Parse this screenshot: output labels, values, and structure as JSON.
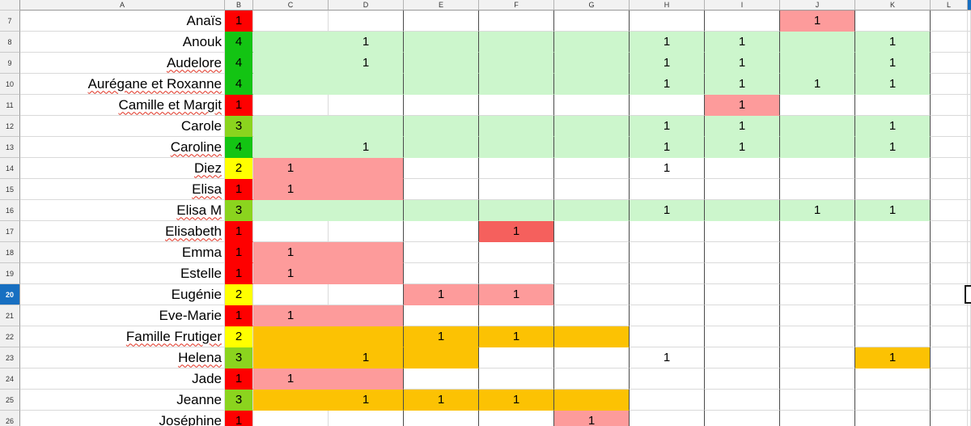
{
  "columns": [
    "A",
    "B",
    "C",
    "D",
    "E",
    "F",
    "G",
    "H",
    "I",
    "J",
    "K",
    "L"
  ],
  "grid_letters": [
    "C",
    "D",
    "E",
    "F",
    "G",
    "H",
    "I",
    "J",
    "K",
    "L"
  ],
  "colors": {
    "score_red": "#fe0000",
    "score_yellow": "#ffff00",
    "score_chartreuse": "#8bd41e",
    "score_green": "#13c413",
    "fill_lightgreen": "#ccf6cc",
    "fill_salmon": "#fd9b9b",
    "fill_coral": "#f5605d",
    "fill_orange": "#fcc203",
    "selected_header_blue": "#176fc1"
  },
  "selection": {
    "selected_row": "20",
    "cursor_partially_visible": true
  },
  "rows": [
    {
      "n": "7",
      "name": "Anaïs",
      "misspelled": false,
      "score": "1",
      "score_color": "score_red",
      "band": null,
      "cells": [
        {
          "col": "J",
          "val": "1",
          "fill": "fill_salmon"
        }
      ],
      "selected": false
    },
    {
      "n": "8",
      "name": "Anouk",
      "misspelled": false,
      "score": "4",
      "score_color": "score_green",
      "band": {
        "from": "C",
        "to": "K",
        "color": "fill_lightgreen"
      },
      "cells": [
        {
          "col": "D",
          "val": "1"
        },
        {
          "col": "H",
          "val": "1"
        },
        {
          "col": "I",
          "val": "1"
        },
        {
          "col": "K",
          "val": "1"
        }
      ],
      "selected": false
    },
    {
      "n": "9",
      "name": "Audelore",
      "misspelled": true,
      "score": "4",
      "score_color": "score_green",
      "band": {
        "from": "C",
        "to": "K",
        "color": "fill_lightgreen"
      },
      "cells": [
        {
          "col": "D",
          "val": "1"
        },
        {
          "col": "H",
          "val": "1"
        },
        {
          "col": "I",
          "val": "1"
        },
        {
          "col": "K",
          "val": "1"
        }
      ],
      "selected": false
    },
    {
      "n": "10",
      "name": "Aurégane et Roxanne",
      "misspelled": true,
      "score": "4",
      "score_color": "score_green",
      "band": {
        "from": "C",
        "to": "K",
        "color": "fill_lightgreen"
      },
      "cells": [
        {
          "col": "H",
          "val": "1"
        },
        {
          "col": "I",
          "val": "1"
        },
        {
          "col": "J",
          "val": "1"
        },
        {
          "col": "K",
          "val": "1"
        }
      ],
      "selected": false
    },
    {
      "n": "11",
      "name": "Camille et Margit",
      "misspelled": true,
      "score": "1",
      "score_color": "score_red",
      "band": null,
      "cells": [
        {
          "col": "I",
          "val": "1",
          "fill": "fill_salmon"
        }
      ],
      "selected": false
    },
    {
      "n": "12",
      "name": "Carole",
      "misspelled": false,
      "score": "3",
      "score_color": "score_chartreuse",
      "band": {
        "from": "C",
        "to": "K",
        "color": "fill_lightgreen"
      },
      "cells": [
        {
          "col": "H",
          "val": "1"
        },
        {
          "col": "I",
          "val": "1"
        },
        {
          "col": "K",
          "val": "1"
        }
      ],
      "selected": false
    },
    {
      "n": "13",
      "name": "Caroline",
      "misspelled": true,
      "score": "4",
      "score_color": "score_green",
      "band": {
        "from": "C",
        "to": "K",
        "color": "fill_lightgreen"
      },
      "cells": [
        {
          "col": "D",
          "val": "1"
        },
        {
          "col": "H",
          "val": "1"
        },
        {
          "col": "I",
          "val": "1"
        },
        {
          "col": "K",
          "val": "1"
        }
      ],
      "selected": false
    },
    {
      "n": "14",
      "name": "Diez",
      "misspelled": true,
      "score": "2",
      "score_color": "score_yellow",
      "band": {
        "from": "C",
        "to": "D",
        "color": "fill_salmon"
      },
      "cells": [
        {
          "col": "C",
          "val": "1"
        },
        {
          "col": "H",
          "val": "1"
        }
      ],
      "selected": false
    },
    {
      "n": "15",
      "name": "Elisa",
      "misspelled": true,
      "score": "1",
      "score_color": "score_red",
      "band": {
        "from": "C",
        "to": "D",
        "color": "fill_salmon"
      },
      "cells": [
        {
          "col": "C",
          "val": "1"
        }
      ],
      "selected": false
    },
    {
      "n": "16",
      "name": "Elisa M",
      "misspelled": true,
      "score": "3",
      "score_color": "score_chartreuse",
      "band": {
        "from": "C",
        "to": "K",
        "color": "fill_lightgreen"
      },
      "cells": [
        {
          "col": "H",
          "val": "1"
        },
        {
          "col": "J",
          "val": "1"
        },
        {
          "col": "K",
          "val": "1"
        }
      ],
      "selected": false
    },
    {
      "n": "17",
      "name": "Elisabeth",
      "misspelled": true,
      "score": "1",
      "score_color": "score_red",
      "band": null,
      "cells": [
        {
          "col": "F",
          "val": "1",
          "fill": "fill_coral"
        }
      ],
      "selected": false
    },
    {
      "n": "18",
      "name": "Emma",
      "misspelled": false,
      "score": "1",
      "score_color": "score_red",
      "band": {
        "from": "C",
        "to": "D",
        "color": "fill_salmon"
      },
      "cells": [
        {
          "col": "C",
          "val": "1"
        }
      ],
      "selected": false
    },
    {
      "n": "19",
      "name": "Estelle",
      "misspelled": false,
      "score": "1",
      "score_color": "score_red",
      "band": {
        "from": "C",
        "to": "D",
        "color": "fill_salmon"
      },
      "cells": [
        {
          "col": "C",
          "val": "1"
        }
      ],
      "selected": false
    },
    {
      "n": "20",
      "name": "Eugénie",
      "misspelled": false,
      "score": "2",
      "score_color": "score_yellow",
      "band": null,
      "cells": [
        {
          "col": "E",
          "val": "1",
          "fill": "fill_salmon"
        },
        {
          "col": "F",
          "val": "1",
          "fill": "fill_salmon"
        }
      ],
      "selected": true
    },
    {
      "n": "21",
      "name": "Eve-Marie",
      "misspelled": false,
      "score": "1",
      "score_color": "score_red",
      "band": {
        "from": "C",
        "to": "D",
        "color": "fill_salmon"
      },
      "cells": [
        {
          "col": "C",
          "val": "1"
        }
      ],
      "selected": false
    },
    {
      "n": "22",
      "name": "Famille Frutiger",
      "misspelled": true,
      "score": "2",
      "score_color": "score_yellow",
      "band": {
        "from": "C",
        "to": "G",
        "color": "fill_orange"
      },
      "cells": [
        {
          "col": "E",
          "val": "1"
        },
        {
          "col": "F",
          "val": "1"
        }
      ],
      "selected": false
    },
    {
      "n": "23",
      "name": "Helena",
      "misspelled": true,
      "score": "3",
      "score_color": "score_chartreuse",
      "band": {
        "from": "C",
        "to": "E",
        "color": "fill_orange"
      },
      "cells": [
        {
          "col": "D",
          "val": "1"
        },
        {
          "col": "H",
          "val": "1"
        },
        {
          "col": "K",
          "val": "1",
          "fill": "fill_orange"
        }
      ],
      "selected": false
    },
    {
      "n": "24",
      "name": "Jade",
      "misspelled": false,
      "score": "1",
      "score_color": "score_red",
      "band": {
        "from": "C",
        "to": "D",
        "color": "fill_salmon"
      },
      "cells": [
        {
          "col": "C",
          "val": "1"
        }
      ],
      "selected": false
    },
    {
      "n": "25",
      "name": "Jeanne",
      "misspelled": false,
      "score": "3",
      "score_color": "score_chartreuse",
      "band": {
        "from": "C",
        "to": "G",
        "color": "fill_orange"
      },
      "cells": [
        {
          "col": "D",
          "val": "1"
        },
        {
          "col": "E",
          "val": "1"
        },
        {
          "col": "F",
          "val": "1"
        }
      ],
      "selected": false
    },
    {
      "n": "26",
      "name": "Joséphine",
      "misspelled": true,
      "score": "1",
      "score_color": "score_red",
      "band": null,
      "cells": [
        {
          "col": "G",
          "val": "1",
          "fill": "fill_salmon"
        }
      ],
      "selected": false
    }
  ]
}
